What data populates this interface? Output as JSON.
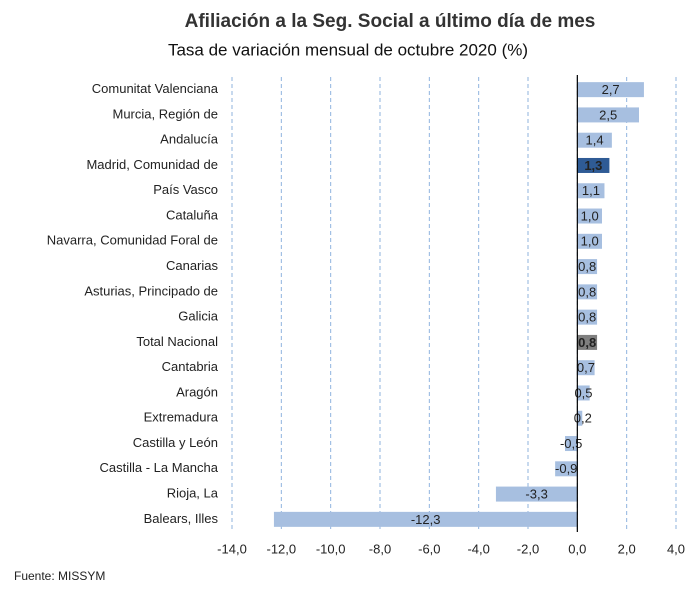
{
  "chart_data": {
    "type": "barh",
    "title": "Afiliación a la Seg. Social a último día de mes",
    "subtitle": "Tasa de variación mensual de octubre 2020 (%)",
    "source": "Fuente: MISSYM",
    "categories": [
      "Comunitat Valenciana",
      "Murcia, Región de",
      "Andalucía",
      "Madrid, Comunidad de",
      "País Vasco",
      "Cataluña",
      "Navarra, Comunidad Foral de",
      "Canarias",
      "Asturias, Principado de",
      "Galicia",
      "Total Nacional",
      "Cantabria",
      "Aragón",
      "Extremadura",
      "Castilla y León",
      "Castilla - La Mancha",
      "Rioja, La",
      "Balears, Illes"
    ],
    "values": [
      2.7,
      2.5,
      1.4,
      1.3,
      1.1,
      1.0,
      1.0,
      0.8,
      0.8,
      0.8,
      0.8,
      0.7,
      0.5,
      0.2,
      -0.5,
      -0.9,
      -3.3,
      -12.3
    ],
    "value_labels": [
      "2,7",
      "2,5",
      "1,4",
      "1,3",
      "1,1",
      "1,0",
      "1,0",
      "0,8",
      "0,8",
      "0,8",
      "0,8",
      "0,7",
      "0,5",
      "0,2",
      "-0,5",
      "-0,9",
      "-3,3",
      "-12,3"
    ],
    "color": "#a7bfe0",
    "colors": [
      "#a7bfe0",
      "#a7bfe0",
      "#a7bfe0",
      "#2f5b95",
      "#a7bfe0",
      "#a7bfe0",
      "#a7bfe0",
      "#a7bfe0",
      "#a7bfe0",
      "#a7bfe0",
      "#7f7f7f",
      "#a7bfe0",
      "#a7bfe0",
      "#a7bfe0",
      "#a7bfe0",
      "#a7bfe0",
      "#a7bfe0",
      "#a7bfe0"
    ],
    "label_colors": [
      "#222",
      "#222",
      "#222",
      "#aaaaaa",
      "#222",
      "#222",
      "#222",
      "#222",
      "#222",
      "#222",
      "#ffffff",
      "#222",
      "#222",
      "#222",
      "#222",
      "#222",
      "#222",
      "#222"
    ],
    "xlim": [
      -14,
      4
    ],
    "xticks": [
      {
        "value": -14,
        "label": "-14,0"
      },
      {
        "value": -12,
        "label": "-12,0"
      },
      {
        "value": -10,
        "label": "-10,0"
      },
      {
        "value": -8,
        "label": "-8,0"
      },
      {
        "value": -6,
        "label": "-6,0"
      },
      {
        "value": -4,
        "label": "-4,0"
      },
      {
        "value": -2,
        "label": "-2,0"
      },
      {
        "value": 0,
        "label": "0,0"
      },
      {
        "value": 2,
        "label": "2,0"
      },
      {
        "value": 4,
        "label": "4,0"
      }
    ],
    "grid": true
  }
}
